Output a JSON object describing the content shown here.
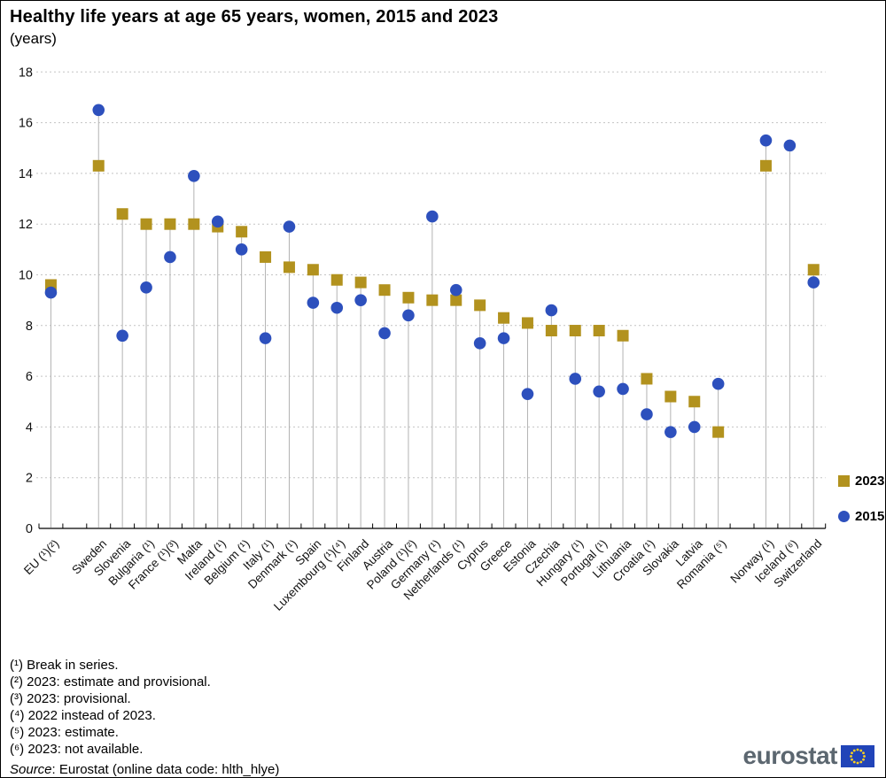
{
  "title": "Healthy life years at age 65 years, women, 2015 and 2023",
  "subtitle": "(years)",
  "chart_data": {
    "type": "scatter",
    "title": "Healthy life years at age 65 years, women, 2015 and 2023",
    "ylabel": "years",
    "ylim": [
      0,
      18
    ],
    "ytick_step": 2,
    "grid": "horizontal-dashed",
    "legend_position": "right",
    "categories": [
      "EU (¹)(²)",
      "Sweden",
      "Slovenia",
      "Bulgaria (¹)",
      "France (¹)(³)",
      "Malta",
      "Ireland (¹)",
      "Belgium (¹)",
      "Italy (¹)",
      "Denmark (¹)",
      "Spain",
      "Luxembourg (¹)(⁴)",
      "Finland",
      "Austria",
      "Poland (¹)(²)",
      "Germany (¹)",
      "Netherlands (¹)",
      "Cyprus",
      "Greece",
      "Estonia",
      "Czechia",
      "Hungary (¹)",
      "Portugal (¹)",
      "Lithuania",
      "Croatia (¹)",
      "Slovakia",
      "Latvia",
      "Romania (⁵)",
      "Norway (¹)",
      "Iceland (⁶)",
      "Switzerland"
    ],
    "gaps_after": [
      0,
      27
    ],
    "series": [
      {
        "name": "2023",
        "marker": "square",
        "color": "#b2921e",
        "values": [
          9.6,
          14.3,
          12.4,
          12.0,
          12.0,
          12.0,
          11.9,
          11.7,
          10.7,
          10.3,
          10.2,
          9.8,
          9.7,
          9.4,
          9.1,
          9.0,
          9.0,
          8.8,
          8.3,
          8.1,
          7.8,
          7.8,
          7.8,
          7.6,
          5.9,
          5.2,
          5.0,
          3.8,
          14.3,
          null,
          10.2
        ]
      },
      {
        "name": "2015",
        "marker": "circle",
        "color": "#2d50bd",
        "values": [
          9.3,
          16.5,
          7.6,
          9.5,
          10.7,
          13.9,
          12.1,
          11.0,
          7.5,
          11.9,
          8.9,
          8.7,
          9.0,
          7.7,
          8.4,
          12.3,
          9.4,
          7.3,
          7.5,
          5.3,
          8.6,
          5.9,
          5.4,
          5.5,
          4.5,
          3.8,
          4.0,
          5.7,
          15.3,
          15.1,
          9.7
        ]
      }
    ]
  },
  "footnotes": [
    "(¹) Break in series.",
    "(²) 2023: estimate and provisional.",
    "(³) 2023: provisional.",
    "(⁴) 2022 instead of 2023.",
    "(⁵) 2023: estimate.",
    "(⁶) 2023: not available."
  ],
  "source": {
    "word": "Source",
    "rest": ": Eurostat (online data code: hlth_hlye)"
  },
  "logo": {
    "text": "eurostat"
  },
  "colors": {
    "series_2023": "#b2921e",
    "series_2015": "#2d50bd",
    "gridline": "#c4c4c4",
    "stem": "#b3b3b3",
    "logo_text": "#5c6770",
    "flag_blue": "#2144b8",
    "flag_star": "#ffd21e"
  }
}
